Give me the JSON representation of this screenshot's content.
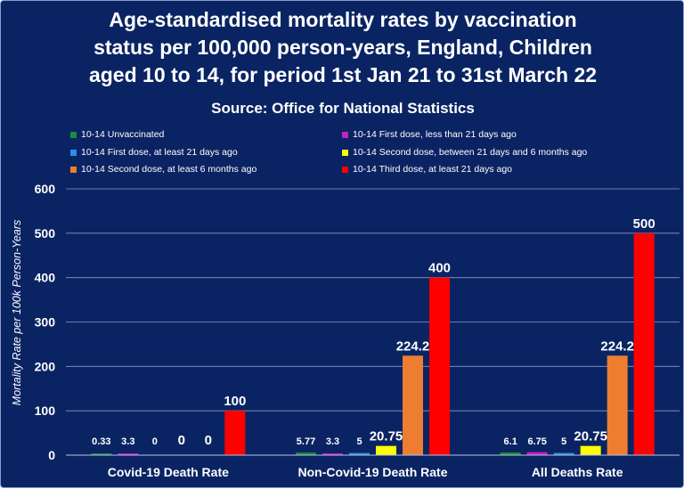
{
  "chart_data": {
    "type": "bar",
    "title": "Age-standardised mortality rates by vaccination\nstatus per 100,000 person-years, England, Children\naged 10 to 14, for period 1st Jan 21 to 31st March 22",
    "subtitle": "Source: Office for National Statistics",
    "ylabel": "Mortality Rate per 100k Person-Years",
    "xlabel": "",
    "ylim": [
      0,
      600
    ],
    "yticks": [
      "0",
      "100",
      "200",
      "300",
      "400",
      "500",
      "600"
    ],
    "grid": true,
    "legend_position": "top",
    "categories": [
      "Covid-19 Death Rate",
      "Non-Covid-19 Death Rate",
      "All Deaths Rate"
    ],
    "series": [
      {
        "name": "10-14 Unvaccinated",
        "color": "#1e8c3a",
        "values": [
          0.33,
          5.77,
          6.1
        ],
        "labels": [
          "0.33",
          "5.77",
          "6.1"
        ]
      },
      {
        "name": "10-14 First dose, less than 21 days ago",
        "color": "#c81ec8",
        "values": [
          3.3,
          3.3,
          6.75
        ],
        "labels": [
          "3.3",
          "3.3",
          "6.75"
        ]
      },
      {
        "name": "10-14 First dose, at least 21 days ago",
        "color": "#2b8fe6",
        "values": [
          0,
          5,
          5
        ],
        "labels": [
          "0",
          "5",
          "5"
        ]
      },
      {
        "name": "10-14 Second dose, between 21 days and 6 months ago",
        "color": "#ffff00",
        "values": [
          0,
          20.75,
          20.75
        ],
        "labels": [
          "0",
          "20.75",
          "20.75"
        ]
      },
      {
        "name": "10-14 Second dose, at least 6 months ago",
        "color": "#ed7d31",
        "values": [
          0,
          224.2,
          224.2
        ],
        "labels": [
          "0",
          "224.2",
          "224.2"
        ]
      },
      {
        "name": "10-14 Third dose, at least 21 days ago",
        "color": "#ff0000",
        "values": [
          100,
          400,
          500
        ],
        "labels": [
          "100",
          "400",
          "500"
        ]
      }
    ]
  }
}
